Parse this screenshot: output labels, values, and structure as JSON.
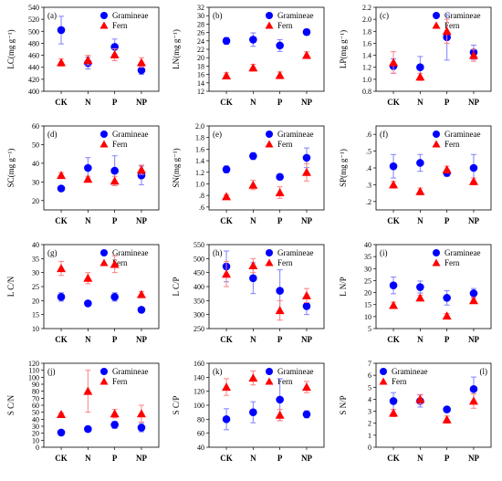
{
  "colors": {
    "gramineae": "#0000ff",
    "fern": "#ff0000",
    "error_bar": "#8080ff",
    "error_bar_fern": "#ff8080"
  },
  "chart_data": [
    {
      "type": "scatter",
      "panel": "(a)",
      "ylabel": "LC(mg g⁻¹)",
      "categories": [
        "CK",
        "N",
        "P",
        "NP"
      ],
      "ylim": [
        400,
        540
      ],
      "yticks": [
        400,
        420,
        440,
        460,
        480,
        500,
        520,
        540
      ],
      "ytick_labels": [
        "400",
        "420",
        "440",
        "460",
        "480",
        "500",
        "520",
        "540"
      ],
      "legend": "top-right",
      "series": [
        {
          "name": "Gramineae",
          "marker": "circle",
          "values": [
            502,
            447,
            474,
            435
          ],
          "errors": [
            23,
            10,
            13,
            7
          ]
        },
        {
          "name": "Fern",
          "marker": "triangle",
          "values": [
            448,
            452,
            461,
            448
          ],
          "errors": [
            6,
            8,
            10,
            8
          ]
        }
      ]
    },
    {
      "type": "scatter",
      "panel": "(b)",
      "ylabel": "LN(mg g⁻¹)",
      "categories": [
        "CK",
        "N",
        "P",
        "NP"
      ],
      "ylim": [
        12,
        32
      ],
      "yticks": [
        12,
        14,
        16,
        18,
        20,
        22,
        24,
        26,
        28,
        30,
        32
      ],
      "ytick_labels": [
        "12",
        "14",
        "16",
        "18",
        "20",
        "22",
        "24",
        "26",
        "28",
        "30",
        "32"
      ],
      "legend": "top-right",
      "series": [
        {
          "name": "Gramineae",
          "marker": "circle",
          "values": [
            24.0,
            24.3,
            22.9,
            26.1
          ],
          "errors": [
            0.8,
            1.6,
            1.4,
            0.7
          ]
        },
        {
          "name": "Fern",
          "marker": "triangle",
          "values": [
            15.7,
            17.6,
            15.8,
            20.6
          ],
          "errors": [
            0.7,
            0.8,
            0.8,
            0.8
          ]
        }
      ]
    },
    {
      "type": "scatter",
      "panel": "(c)",
      "ylabel": "LP(mg g⁻¹)",
      "categories": [
        "CK",
        "N",
        "P",
        "NP"
      ],
      "ylim": [
        0.8,
        2.2
      ],
      "yticks": [
        0.8,
        1.0,
        1.2,
        1.4,
        1.6,
        1.8,
        2.0,
        2.2
      ],
      "ytick_labels": [
        "0.8",
        "1.0",
        "1.2",
        "1.4",
        "1.6",
        "1.8",
        "2.0",
        "2.2"
      ],
      "legend": "top-right",
      "series": [
        {
          "name": "Gramineae",
          "marker": "circle",
          "values": [
            1.22,
            1.2,
            1.7,
            1.45
          ],
          "errors": [
            0.12,
            0.18,
            0.38,
            0.12
          ]
        },
        {
          "name": "Fern",
          "marker": "triangle",
          "values": [
            1.28,
            1.04,
            1.8,
            1.4
          ],
          "errors": [
            0.18,
            0.06,
            0.2,
            0.1
          ]
        }
      ]
    },
    {
      "type": "scatter",
      "panel": "(d)",
      "ylabel": "SC(mg g⁻¹)",
      "categories": [
        "CK",
        "N",
        "P",
        "NP"
      ],
      "ylim": [
        15,
        60
      ],
      "yticks": [
        20,
        30,
        40,
        50,
        60
      ],
      "ytick_labels": [
        "20",
        "30",
        "40",
        "50",
        "60"
      ],
      "legend": "top-right",
      "series": [
        {
          "name": "Gramineae",
          "marker": "circle",
          "values": [
            26.5,
            37.5,
            36,
            33.5
          ],
          "errors": [
            1.0,
            5.5,
            8.0,
            5.0
          ]
        },
        {
          "name": "Fern",
          "marker": "triangle",
          "values": [
            33.5,
            31.5,
            30.5,
            36.5
          ],
          "errors": [
            1.5,
            1.5,
            2.5,
            2.5
          ]
        }
      ]
    },
    {
      "type": "scatter",
      "panel": "(e)",
      "ylabel": "SN(mg g⁻¹)",
      "categories": [
        "CK",
        "N",
        "P",
        "NP"
      ],
      "ylim": [
        0.55,
        2.0
      ],
      "yticks": [
        0.6,
        0.8,
        1.0,
        1.2,
        1.4,
        1.6,
        1.8,
        2.0
      ],
      "ytick_labels": [
        ".6",
        ".8",
        "1.0",
        "1.2",
        "1.4",
        "1.6",
        "1.8",
        "2.0"
      ],
      "legend": "top-right",
      "series": [
        {
          "name": "Gramineae",
          "marker": "circle",
          "values": [
            1.25,
            1.48,
            1.12,
            1.45
          ],
          "errors": [
            0.06,
            0.06,
            0.02,
            0.17
          ]
        },
        {
          "name": "Fern",
          "marker": "triangle",
          "values": [
            0.78,
            0.98,
            0.85,
            1.2
          ],
          "errors": [
            0.03,
            0.08,
            0.1,
            0.15
          ]
        }
      ]
    },
    {
      "type": "scatter",
      "panel": "(f)",
      "ylabel": "SP(mg g⁻¹)",
      "categories": [
        "CK",
        "N",
        "P",
        "NP"
      ],
      "ylim": [
        0.15,
        0.65
      ],
      "yticks": [
        0.2,
        0.3,
        0.4,
        0.5,
        0.6
      ],
      "ytick_labels": [
        ".2",
        ".3",
        ".4",
        ".5",
        ".6"
      ],
      "legend": "top-right",
      "series": [
        {
          "name": "Gramineae",
          "marker": "circle",
          "values": [
            0.41,
            0.43,
            0.37,
            0.4
          ],
          "errors": [
            0.07,
            0.05,
            0.02,
            0.08
          ]
        },
        {
          "name": "Fern",
          "marker": "triangle",
          "values": [
            0.3,
            0.26,
            0.39,
            0.32
          ],
          "errors": [
            0.02,
            0.02,
            0.02,
            0.02
          ]
        }
      ]
    },
    {
      "type": "scatter",
      "panel": "(g)",
      "ylabel": "L C/N",
      "categories": [
        "CK",
        "N",
        "P",
        "NP"
      ],
      "ylim": [
        10,
        40
      ],
      "yticks": [
        10,
        15,
        20,
        25,
        30,
        35,
        40
      ],
      "ytick_labels": [
        "10",
        "15",
        "20",
        "25",
        "30",
        "35",
        "40"
      ],
      "legend": "top-right",
      "series": [
        {
          "name": "Gramineae",
          "marker": "circle",
          "values": [
            21.3,
            19.0,
            21.3,
            16.7
          ],
          "errors": [
            1.5,
            0.8,
            1.5,
            0.4
          ]
        },
        {
          "name": "Fern",
          "marker": "triangle",
          "values": [
            31.5,
            28.0,
            33.0,
            22.2
          ],
          "errors": [
            2.5,
            2.0,
            3.0,
            1.0
          ]
        }
      ]
    },
    {
      "type": "scatter",
      "panel": "(h)",
      "ylabel": "L C/P",
      "categories": [
        "CK",
        "N",
        "P",
        "NP"
      ],
      "ylim": [
        250,
        550
      ],
      "yticks": [
        250,
        300,
        350,
        400,
        450,
        500,
        550
      ],
      "ytick_labels": [
        "250",
        "300",
        "350",
        "400",
        "450",
        "500",
        "550"
      ],
      "legend": "top-right",
      "series": [
        {
          "name": "Gramineae",
          "marker": "circle",
          "values": [
            472,
            430,
            385,
            330
          ],
          "errors": [
            55,
            55,
            75,
            30
          ]
        },
        {
          "name": "Fern",
          "marker": "triangle",
          "values": [
            445,
            475,
            315,
            368
          ],
          "errors": [
            45,
            25,
            35,
            25
          ]
        }
      ]
    },
    {
      "type": "scatter",
      "panel": "(i)",
      "ylabel": "L N/P",
      "categories": [
        "CK",
        "N",
        "P",
        "NP"
      ],
      "ylim": [
        5,
        40
      ],
      "yticks": [
        5,
        10,
        15,
        20,
        25,
        30,
        35,
        40
      ],
      "ytick_labels": [
        "5",
        "10",
        "15",
        "20",
        "25",
        "30",
        "35",
        "40"
      ],
      "legend": "top-right",
      "series": [
        {
          "name": "Gramineae",
          "marker": "circle",
          "values": [
            23.0,
            22.3,
            17.8,
            19.7
          ],
          "errors": [
            3.5,
            2.5,
            3.0,
            2.0
          ]
        },
        {
          "name": "Fern",
          "marker": "triangle",
          "values": [
            14.7,
            17.8,
            10.3,
            16.7
          ],
          "errors": [
            1.3,
            1.0,
            1.0,
            1.2
          ]
        }
      ]
    },
    {
      "type": "scatter",
      "panel": "(j)",
      "ylabel": "S C/N",
      "categories": [
        "CK",
        "N",
        "P",
        "NP"
      ],
      "ylim": [
        0,
        120
      ],
      "yticks": [
        0,
        10,
        20,
        30,
        40,
        50,
        60,
        70,
        80,
        90,
        100,
        110,
        120
      ],
      "ytick_labels": [
        "0",
        "10",
        "20",
        "30",
        "40",
        "50",
        "60",
        "70",
        "80",
        "90",
        "100",
        "110",
        "120"
      ],
      "legend": "top-right",
      "series": [
        {
          "name": "Gramineae",
          "marker": "circle",
          "values": [
            21,
            26,
            32,
            28
          ],
          "errors": [
            1.5,
            3,
            5,
            6
          ]
        },
        {
          "name": "Fern",
          "marker": "triangle",
          "values": [
            47,
            80,
            48,
            48
          ],
          "errors": [
            2,
            30,
            6,
            12
          ]
        }
      ]
    },
    {
      "type": "scatter",
      "panel": "(k)",
      "ylabel": "S C/P",
      "categories": [
        "CK",
        "N",
        "P",
        "NP"
      ],
      "ylim": [
        40,
        160
      ],
      "yticks": [
        40,
        60,
        80,
        100,
        120,
        140,
        160
      ],
      "ytick_labels": [
        "40",
        "60",
        "80",
        "100",
        "120",
        "140",
        "160"
      ],
      "legend": "top-right",
      "series": [
        {
          "name": "Gramineae",
          "marker": "circle",
          "values": [
            80,
            90,
            108,
            87
          ],
          "errors": [
            15,
            15,
            30,
            5
          ]
        },
        {
          "name": "Fern",
          "marker": "triangle",
          "values": [
            126,
            139,
            86,
            126
          ],
          "errors": [
            12,
            10,
            8,
            8
          ]
        }
      ]
    },
    {
      "type": "scatter",
      "panel": "(l)",
      "ylabel": "S N/P",
      "categories": [
        "CK",
        "N",
        "P",
        "NP"
      ],
      "ylim": [
        0,
        7
      ],
      "yticks": [
        0,
        1,
        2,
        3,
        4,
        5,
        6,
        7
      ],
      "ytick_labels": [
        "0",
        "1",
        "2",
        "3",
        "4",
        "5",
        "6",
        "7"
      ],
      "legend": "top-left",
      "series": [
        {
          "name": "Gramineae",
          "marker": "circle",
          "values": [
            3.85,
            3.85,
            3.15,
            4.85
          ],
          "errors": [
            0.7,
            0.5,
            0.2,
            1.0
          ]
        },
        {
          "name": "Fern",
          "marker": "triangle",
          "values": [
            2.85,
            4.0,
            2.3,
            3.85
          ],
          "errors": [
            0.3,
            0.4,
            0.3,
            0.6
          ]
        }
      ]
    }
  ]
}
